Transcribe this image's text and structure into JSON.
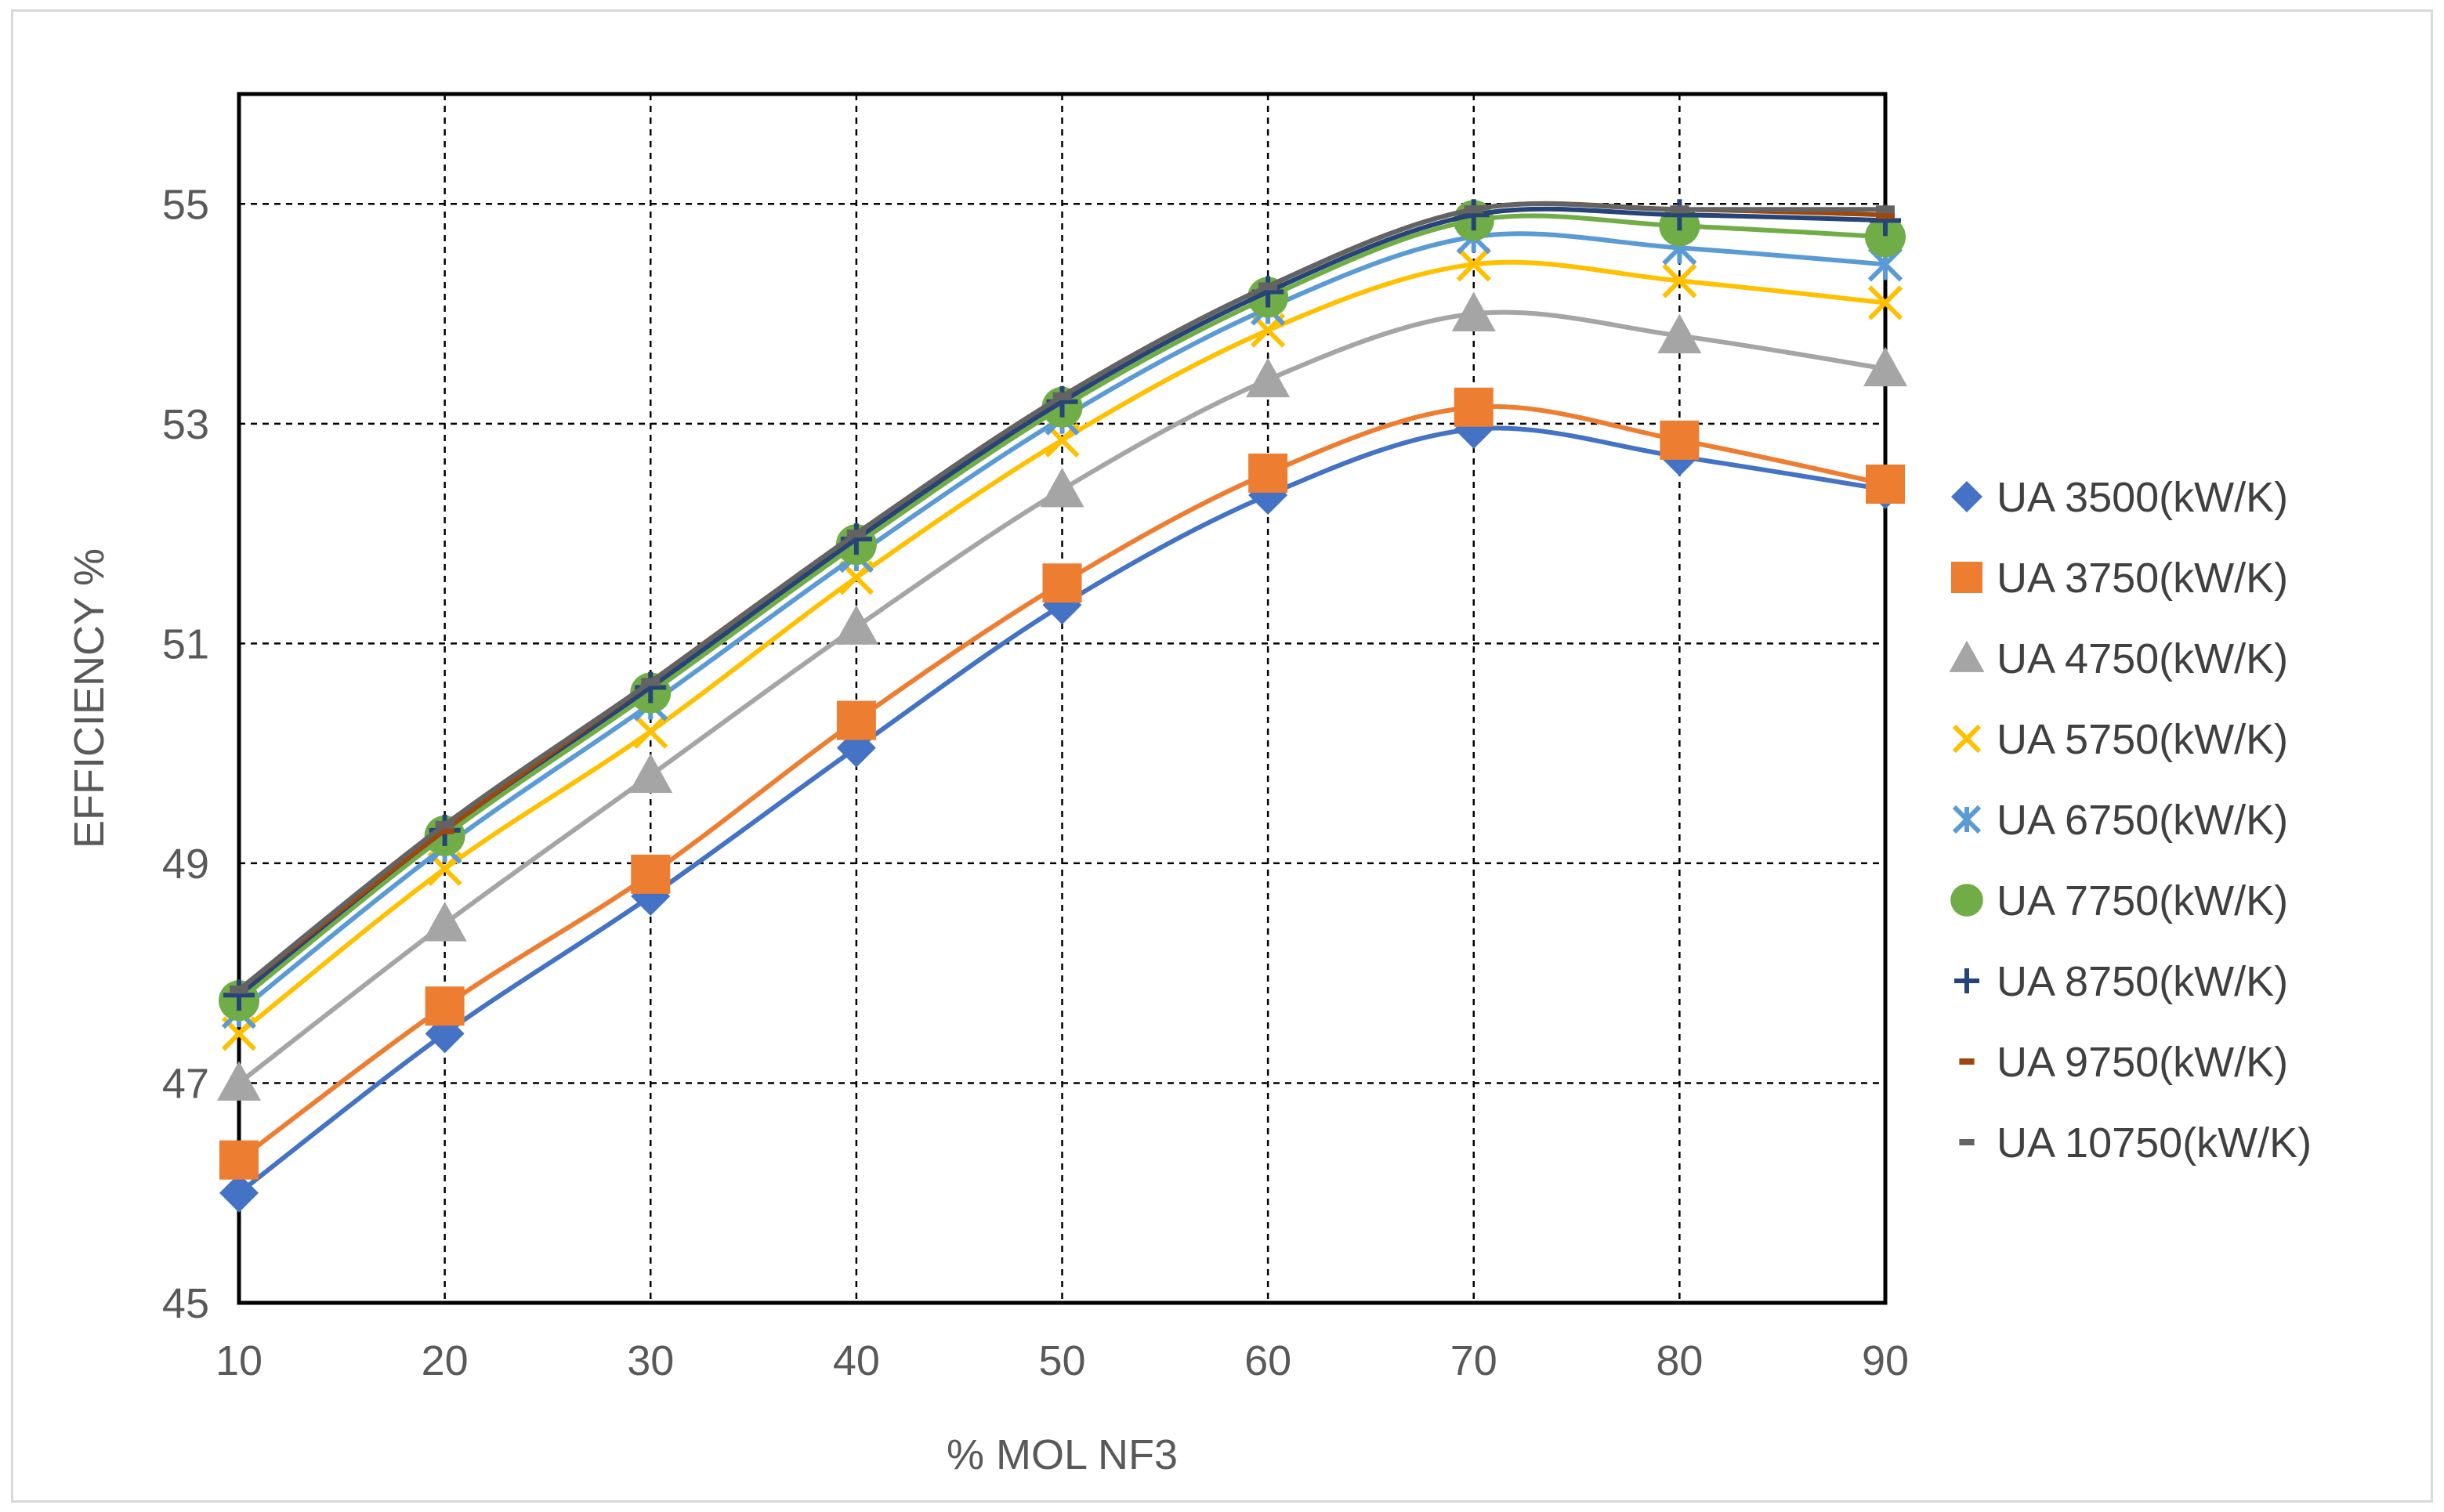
{
  "chart_data": {
    "type": "scatter",
    "title": "",
    "xlabel": "% MOL NF3",
    "ylabel": "EFFICIENCY %",
    "x": [
      10,
      20,
      30,
      40,
      50,
      60,
      70,
      80,
      90
    ],
    "xlim": [
      10,
      90
    ],
    "ylim": [
      45,
      56
    ],
    "xticks": [
      10,
      20,
      30,
      40,
      50,
      60,
      70,
      80,
      90
    ],
    "yticks": [
      45,
      47,
      49,
      51,
      53,
      55
    ],
    "grid": true,
    "legend": "right",
    "series": [
      {
        "name": "UA 3500(kW/K)",
        "marker": "diamond",
        "color": "#4472c4",
        "values": [
          46.0,
          47.45,
          48.7,
          50.05,
          51.35,
          52.35,
          52.95,
          52.7,
          52.4
        ]
      },
      {
        "name": "UA 3750(kW/K)",
        "marker": "square",
        "color": "#ed7d31",
        "values": [
          46.3,
          47.7,
          48.9,
          50.3,
          51.55,
          52.55,
          53.15,
          52.85,
          52.45
        ]
      },
      {
        "name": "UA 4750(kW/K)",
        "marker": "triangle",
        "color": "#a5a5a5",
        "values": [
          47.0,
          48.45,
          49.8,
          51.15,
          52.4,
          53.4,
          54.0,
          53.8,
          53.5
        ]
      },
      {
        "name": "UA 5750(kW/K)",
        "marker": "x",
        "color": "#ffc000",
        "values": [
          47.45,
          48.95,
          50.2,
          51.6,
          52.85,
          53.85,
          54.45,
          54.3,
          54.1
        ]
      },
      {
        "name": "UA 6750(kW/K)",
        "marker": "asterisk",
        "color": "#5b9bd5",
        "values": [
          47.65,
          49.15,
          50.45,
          51.8,
          53.05,
          54.05,
          54.7,
          54.6,
          54.45
        ]
      },
      {
        "name": "UA 7750(kW/K)",
        "marker": "circle",
        "color": "#70ad47",
        "values": [
          47.75,
          49.25,
          50.55,
          51.9,
          53.15,
          54.15,
          54.85,
          54.8,
          54.7
        ]
      },
      {
        "name": "UA 8750(kW/K)",
        "marker": "plus",
        "color": "#264478",
        "values": [
          47.8,
          49.3,
          50.6,
          51.95,
          53.2,
          54.2,
          54.9,
          54.9,
          54.85
        ]
      },
      {
        "name": "UA 9750(kW/K)",
        "marker": "dash",
        "color": "#9e480e",
        "values": [
          47.85,
          49.3,
          50.65,
          52.0,
          53.25,
          54.25,
          54.95,
          54.95,
          54.9
        ]
      },
      {
        "name": "UA 10750(kW/K)",
        "marker": "dash",
        "color": "#636363",
        "values": [
          47.85,
          49.35,
          50.65,
          52.0,
          53.25,
          54.25,
          54.95,
          54.95,
          54.95
        ]
      }
    ]
  }
}
